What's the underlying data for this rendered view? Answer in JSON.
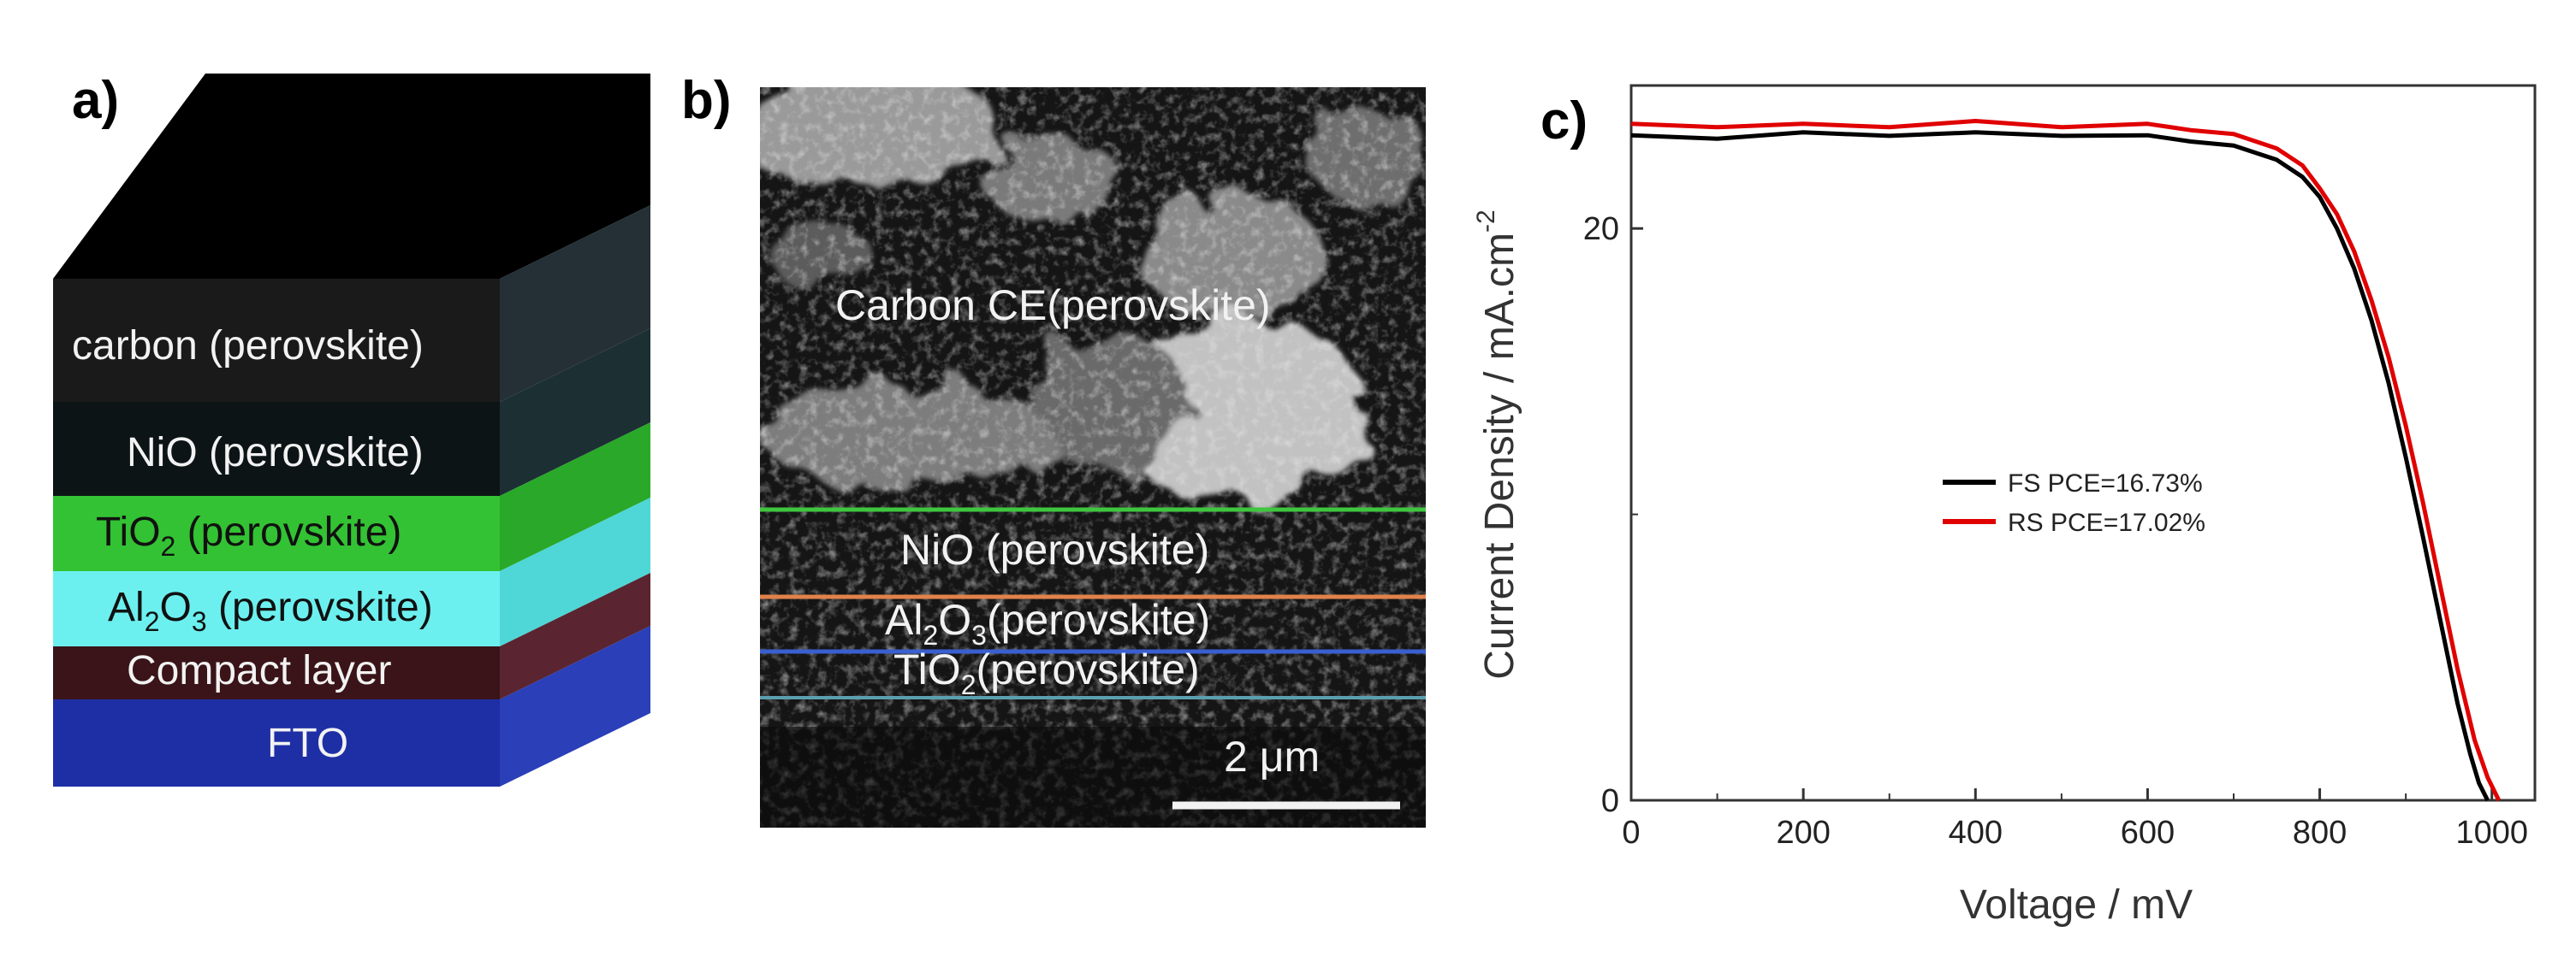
{
  "panels": {
    "a": {
      "label": "a)",
      "layers": [
        {
          "id": "carbon",
          "label": "carbon (perovskite)",
          "front": "#1a1a1a",
          "side": "#243036",
          "text_color": "#f2f2f2"
        },
        {
          "id": "nio",
          "label": "NiO (perovskite)",
          "front": "#0d1416",
          "side": "#1c2f33",
          "text_color": "#f2f2f2"
        },
        {
          "id": "tio2",
          "label_main": "TiO",
          "label_sub": "2",
          "label_rest": " (perovskite)",
          "front": "#33c233",
          "side": "#2aa82a",
          "text_color": "#111111"
        },
        {
          "id": "al2o3",
          "label_main": "Al",
          "label_sub": "2",
          "label_mid": "O",
          "label_sub2": "3",
          "label_rest": " (perovskite)",
          "front": "#6cf0ef",
          "side": "#4fd6d6",
          "text_color": "#111111"
        },
        {
          "id": "compact",
          "label": "Compact layer",
          "front": "#3a1418",
          "side": "#5a2530",
          "text_color": "#f2f2f2"
        },
        {
          "id": "fto",
          "label": "FTO",
          "front": "#1e2fa6",
          "side": "#2a3fb8",
          "text_color": "#f2f2f2"
        }
      ],
      "top_color": "#000000"
    },
    "b": {
      "label": "b)",
      "regions": {
        "carbon": "Carbon CE(perovskite)",
        "nio": "NiO (perovskite)",
        "al2o3_main": "Al",
        "al2o3_sub": "2",
        "al2o3_mid": "O",
        "al2o3_sub2": "3",
        "al2o3_rest": "(perovskite)",
        "tio2_main": "TiO",
        "tio2_sub": "2",
        "tio2_rest": "(perovskite)"
      },
      "boundary_colors": {
        "green": "#3fc63f",
        "orange": "#e0824a",
        "blue": "#3a5fd0",
        "teal": "#5a9fb0"
      },
      "scale_bar": "2 μm"
    },
    "c": {
      "label": "c)"
    }
  },
  "chart_data": {
    "type": "line",
    "xlabel": "Voltage / mV",
    "ylabel_main": "Current Density / mA.cm",
    "ylabel_sup": "-2",
    "xlim": [
      0,
      1050
    ],
    "ylim": [
      0,
      25
    ],
    "xticks": [
      0,
      200,
      400,
      600,
      800,
      1000
    ],
    "yticks": [
      0,
      20
    ],
    "series": [
      {
        "name": "FS PCE=16.73%",
        "color": "#000000",
        "x": [
          0,
          100,
          200,
          300,
          400,
          500,
          600,
          650,
          700,
          750,
          780,
          800,
          820,
          840,
          860,
          880,
          900,
          920,
          940,
          960,
          975,
          985,
          995
        ],
        "y": [
          23.2,
          23.2,
          23.3,
          23.3,
          23.3,
          23.3,
          23.2,
          23.1,
          22.9,
          22.4,
          21.8,
          21.1,
          20.0,
          18.6,
          16.8,
          14.6,
          12.0,
          9.2,
          6.3,
          3.4,
          1.6,
          0.6,
          0
        ]
      },
      {
        "name": "RS PCE=17.02%",
        "color": "#e00000",
        "x": [
          0,
          100,
          200,
          300,
          400,
          500,
          600,
          650,
          700,
          750,
          780,
          800,
          820,
          840,
          860,
          880,
          900,
          920,
          940,
          960,
          980,
          995,
          1008
        ],
        "y": [
          23.6,
          23.6,
          23.6,
          23.6,
          23.7,
          23.6,
          23.6,
          23.5,
          23.3,
          22.8,
          22.2,
          21.4,
          20.5,
          19.2,
          17.5,
          15.5,
          13.1,
          10.4,
          7.5,
          4.6,
          2.1,
          0.8,
          0
        ]
      }
    ],
    "legend_position": "center"
  }
}
